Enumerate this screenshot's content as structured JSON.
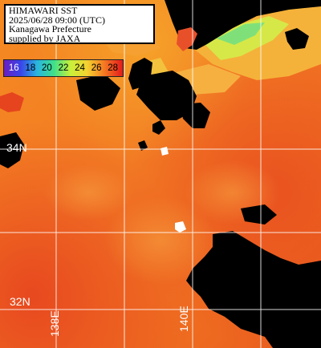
{
  "title": {
    "line1": "HIMAWARI SST",
    "line2": "2025/06/28 09:00 (UTC)",
    "line3": "Kanagawa Prefecture",
    "line4": "supplied by JAXA"
  },
  "legend": {
    "ticks": [
      "16",
      "18",
      "20",
      "22",
      "24",
      "26",
      "28"
    ],
    "colors": [
      "#6a1fc0",
      "#3a44e8",
      "#2ab6e0",
      "#3fe08a",
      "#c8f03a",
      "#f5d130",
      "#f57b22",
      "#e41a1c"
    ]
  },
  "grid_labels": {
    "lat_34": "34N",
    "lat_32": "32N",
    "lon_138": "138E",
    "lon_140": "140E"
  },
  "colors": {
    "land": "#000000",
    "grid": "#ffffff",
    "sea_warm": "#f27a22",
    "sea_hot": "#e84a1c"
  }
}
